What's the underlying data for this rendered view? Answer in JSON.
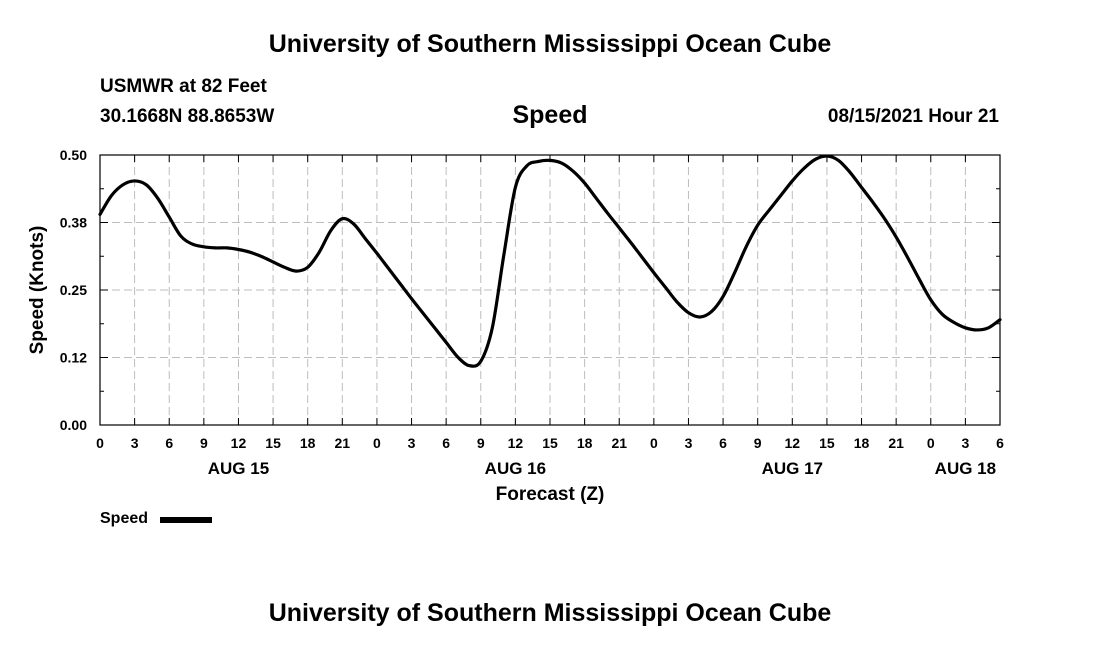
{
  "header": {
    "title": "University of Southern Mississippi Ocean Cube",
    "station": "USMWR at 82 Feet",
    "coords": "30.1668N  88.8653W",
    "variable": "Speed",
    "datetime": "08/15/2021 Hour 21"
  },
  "footer": {
    "title": "University of Southern Mississippi Ocean Cube"
  },
  "legend": {
    "label": "Speed",
    "color": "#000000"
  },
  "chart_data": {
    "type": "line",
    "title": "Speed",
    "xlabel": "Forecast (Z)",
    "ylabel": "Speed (Knots)",
    "ylim": [
      0,
      0.5
    ],
    "xlim": [
      0,
      78
    ],
    "x_unit": "hours from 00Z AUG 15",
    "yticks": [
      "0.00",
      "0.12",
      "0.25",
      "0.38",
      "0.50"
    ],
    "xticks": [
      "0",
      "3",
      "6",
      "9",
      "12",
      "15",
      "18",
      "21",
      "0",
      "3",
      "6",
      "9",
      "12",
      "15",
      "18",
      "21",
      "0",
      "3",
      "6",
      "9",
      "12",
      "15",
      "18",
      "21",
      "0",
      "3",
      "6"
    ],
    "date_labels": [
      {
        "label": "AUG 15",
        "hour": 12
      },
      {
        "label": "AUG 16",
        "hour": 36
      },
      {
        "label": "AUG 17",
        "hour": 60
      },
      {
        "label": "AUG 18",
        "hour": 75
      }
    ],
    "grid": true,
    "legend_position": "bottom-left",
    "series": [
      {
        "name": "Speed",
        "color": "#000000",
        "x": [
          0,
          1,
          2,
          3,
          4,
          5,
          6,
          7,
          8,
          9,
          10,
          11,
          12,
          13,
          14,
          15,
          16,
          17,
          18,
          19,
          20,
          21,
          22,
          23,
          24,
          25,
          26,
          27,
          28,
          29,
          30,
          31,
          32,
          33,
          34,
          35,
          36,
          37,
          38,
          39,
          40,
          41,
          42,
          43,
          44,
          45,
          46,
          47,
          48,
          49,
          50,
          51,
          52,
          53,
          54,
          55,
          56,
          57,
          58,
          59,
          60,
          61,
          62,
          63,
          64,
          65,
          66,
          67,
          68,
          69,
          70,
          71,
          72,
          73,
          74,
          75,
          76,
          77,
          78
        ],
        "values": [
          0.39,
          0.425,
          0.445,
          0.452,
          0.445,
          0.42,
          0.385,
          0.35,
          0.335,
          0.33,
          0.328,
          0.328,
          0.325,
          0.32,
          0.312,
          0.302,
          0.292,
          0.285,
          0.292,
          0.32,
          0.36,
          0.382,
          0.372,
          0.345,
          0.318,
          0.29,
          0.262,
          0.234,
          0.207,
          0.18,
          0.153,
          0.126,
          0.11,
          0.118,
          0.18,
          0.315,
          0.44,
          0.48,
          0.488,
          0.49,
          0.485,
          0.47,
          0.448,
          0.42,
          0.392,
          0.365,
          0.338,
          0.31,
          0.282,
          0.255,
          0.228,
          0.208,
          0.2,
          0.21,
          0.238,
          0.282,
          0.33,
          0.37,
          0.398,
          0.425,
          0.452,
          0.475,
          0.492,
          0.498,
          0.49,
          0.468,
          0.44,
          0.412,
          0.382,
          0.348,
          0.31,
          0.27,
          0.232,
          0.205,
          0.19,
          0.18,
          0.176,
          0.18,
          0.195
        ]
      }
    ]
  }
}
